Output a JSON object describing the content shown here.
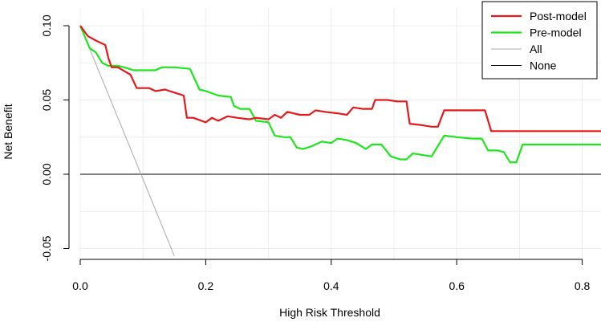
{
  "chart_data": {
    "type": "line",
    "title": "",
    "xlabel": "High Risk Threshold",
    "ylabel": "Net Benefit",
    "xlim": [
      0,
      0.83
    ],
    "ylim": [
      -0.055,
      0.1
    ],
    "x_ticks": [
      {
        "value": 0.0,
        "label": "0.0"
      },
      {
        "value": 0.2,
        "label": "0.2"
      },
      {
        "value": 0.4,
        "label": "0.4"
      },
      {
        "value": 0.6,
        "label": "0.6"
      },
      {
        "value": 0.8,
        "label": "0.8"
      }
    ],
    "y_ticks": [
      {
        "value": -0.05,
        "label": "-0.05"
      },
      {
        "value": 0.0,
        "label": "0.00"
      },
      {
        "value": 0.05,
        "label": "0.05"
      },
      {
        "value": 0.1,
        "label": "0.10"
      }
    ],
    "grid": true,
    "legend_position": "top-right",
    "series": [
      {
        "name": "Post-model",
        "color": "#e31a1c",
        "points": [
          [
            0.0,
            0.1
          ],
          [
            0.012,
            0.093
          ],
          [
            0.025,
            0.09
          ],
          [
            0.04,
            0.087
          ],
          [
            0.045,
            0.078
          ],
          [
            0.05,
            0.072
          ],
          [
            0.06,
            0.072
          ],
          [
            0.08,
            0.067
          ],
          [
            0.09,
            0.058
          ],
          [
            0.11,
            0.058
          ],
          [
            0.12,
            0.056
          ],
          [
            0.135,
            0.057
          ],
          [
            0.15,
            0.055
          ],
          [
            0.165,
            0.053
          ],
          [
            0.17,
            0.038
          ],
          [
            0.18,
            0.038
          ],
          [
            0.2,
            0.035
          ],
          [
            0.21,
            0.038
          ],
          [
            0.22,
            0.036
          ],
          [
            0.235,
            0.039
          ],
          [
            0.25,
            0.038
          ],
          [
            0.27,
            0.037
          ],
          [
            0.28,
            0.038
          ],
          [
            0.3,
            0.037
          ],
          [
            0.31,
            0.04
          ],
          [
            0.32,
            0.038
          ],
          [
            0.33,
            0.042
          ],
          [
            0.35,
            0.04
          ],
          [
            0.365,
            0.04
          ],
          [
            0.375,
            0.043
          ],
          [
            0.39,
            0.042
          ],
          [
            0.41,
            0.041
          ],
          [
            0.425,
            0.04
          ],
          [
            0.435,
            0.045
          ],
          [
            0.45,
            0.044
          ],
          [
            0.465,
            0.044
          ],
          [
            0.47,
            0.05
          ],
          [
            0.49,
            0.05
          ],
          [
            0.505,
            0.049
          ],
          [
            0.52,
            0.049
          ],
          [
            0.525,
            0.034
          ],
          [
            0.545,
            0.033
          ],
          [
            0.56,
            0.032
          ],
          [
            0.57,
            0.032
          ],
          [
            0.58,
            0.043
          ],
          [
            0.6,
            0.043
          ],
          [
            0.625,
            0.043
          ],
          [
            0.645,
            0.043
          ],
          [
            0.655,
            0.029
          ],
          [
            0.7,
            0.029
          ],
          [
            0.75,
            0.029
          ],
          [
            0.83,
            0.029
          ]
        ]
      },
      {
        "name": "Pre-model",
        "color": "#1ee61e",
        "points": [
          [
            0.0,
            0.1
          ],
          [
            0.015,
            0.085
          ],
          [
            0.025,
            0.082
          ],
          [
            0.035,
            0.075
          ],
          [
            0.045,
            0.073
          ],
          [
            0.06,
            0.073
          ],
          [
            0.07,
            0.072
          ],
          [
            0.085,
            0.07
          ],
          [
            0.1,
            0.07
          ],
          [
            0.12,
            0.07
          ],
          [
            0.13,
            0.072
          ],
          [
            0.15,
            0.072
          ],
          [
            0.175,
            0.071
          ],
          [
            0.19,
            0.057
          ],
          [
            0.2,
            0.056
          ],
          [
            0.22,
            0.053
          ],
          [
            0.24,
            0.052
          ],
          [
            0.245,
            0.046
          ],
          [
            0.255,
            0.044
          ],
          [
            0.27,
            0.044
          ],
          [
            0.28,
            0.036
          ],
          [
            0.3,
            0.035
          ],
          [
            0.31,
            0.026
          ],
          [
            0.325,
            0.025
          ],
          [
            0.335,
            0.025
          ],
          [
            0.345,
            0.018
          ],
          [
            0.355,
            0.017
          ],
          [
            0.37,
            0.019
          ],
          [
            0.385,
            0.022
          ],
          [
            0.4,
            0.021
          ],
          [
            0.41,
            0.024
          ],
          [
            0.425,
            0.023
          ],
          [
            0.44,
            0.021
          ],
          [
            0.455,
            0.017
          ],
          [
            0.465,
            0.02
          ],
          [
            0.48,
            0.02
          ],
          [
            0.495,
            0.012
          ],
          [
            0.51,
            0.01
          ],
          [
            0.52,
            0.01
          ],
          [
            0.53,
            0.014
          ],
          [
            0.545,
            0.013
          ],
          [
            0.56,
            0.012
          ],
          [
            0.58,
            0.026
          ],
          [
            0.6,
            0.025
          ],
          [
            0.625,
            0.024
          ],
          [
            0.64,
            0.024
          ],
          [
            0.65,
            0.016
          ],
          [
            0.665,
            0.016
          ],
          [
            0.675,
            0.015
          ],
          [
            0.685,
            0.008
          ],
          [
            0.695,
            0.008
          ],
          [
            0.705,
            0.02
          ],
          [
            0.73,
            0.02
          ],
          [
            0.83,
            0.02
          ]
        ]
      },
      {
        "name": "All",
        "color": "#a9a9a9",
        "points": [
          [
            0.0,
            0.1
          ],
          [
            0.15,
            -0.055
          ]
        ]
      },
      {
        "name": "None",
        "color": "#000000",
        "points": [
          [
            0.0,
            0.0
          ],
          [
            0.83,
            0.0
          ]
        ]
      }
    ]
  }
}
